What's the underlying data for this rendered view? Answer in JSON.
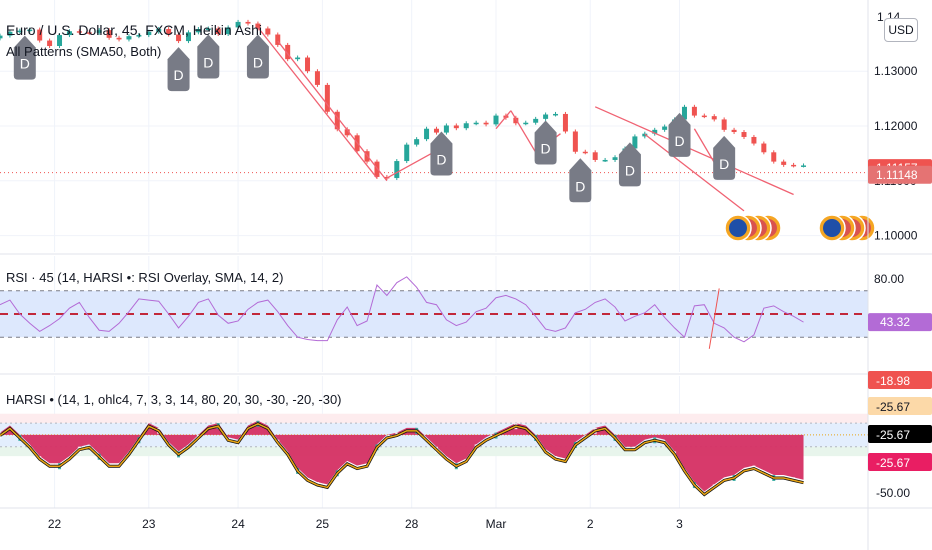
{
  "header": {
    "title": "Euro / U.S. Dollar, 45, FXCM, Heikin Ashi",
    "indicator": "All Patterns (SMA50, Both)",
    "rsi_legend": "RSI · 45 (14, HARSI •: RSI Overlay, SMA, 14, 2)",
    "harsi_legend": "HARSI • (14, 1, ohlc4, 7, 3, 3, 14, 80, 20, 30, -30, -20, -30)",
    "currency_button": "USD",
    "top_partial": "1.14"
  },
  "colors": {
    "up": "#26a69a",
    "down": "#ef5350",
    "trend": "#f06272",
    "rsi_line": "#b36bd6",
    "rsi_band": "#dde8fd",
    "rsi_mid": "#c2283a",
    "harsi_bar": "#d52f63",
    "harsi_edge": "#e8a515",
    "badge": "#787b86",
    "axis": "#131722",
    "grid": "#f0f3fa"
  },
  "chart_data": [
    {
      "type": "line",
      "name": "price",
      "chart_kind": "heikin-ashi candles",
      "ylim": [
        1.097,
        1.143
      ],
      "price_ticks": [
        "1.13000",
        "1.12000",
        "1.11000",
        "1.10000"
      ],
      "current_labels": [
        "1.11157",
        "1.11148"
      ],
      "x_ticks": [
        "22",
        "23",
        "24",
        "25",
        "28",
        "Mar",
        "2",
        "3"
      ],
      "x": [
        0,
        2,
        4,
        6,
        8,
        10,
        12,
        14,
        16,
        18,
        20,
        22,
        24,
        26,
        28,
        30,
        32,
        34,
        36,
        38,
        40,
        42,
        44,
        46,
        48,
        50,
        52,
        54,
        56,
        58,
        60,
        62,
        64,
        66,
        68,
        70,
        72,
        74,
        76,
        78,
        80,
        82,
        84,
        86,
        88,
        90,
        92,
        94,
        96,
        98,
        100,
        102,
        104,
        106,
        108,
        110,
        112,
        114,
        116,
        118,
        120,
        122,
        124,
        126,
        128,
        130,
        132,
        134,
        136,
        138,
        140,
        142,
        144,
        146,
        148,
        150,
        152,
        154,
        156,
        158,
        160,
        162
      ],
      "values": [
        1.1365,
        1.1372,
        1.1374,
        1.1376,
        1.1356,
        1.1346,
        1.1366,
        1.1373,
        1.1371,
        1.137,
        1.1375,
        1.1361,
        1.1358,
        1.1364,
        1.1366,
        1.1372,
        1.1377,
        1.1367,
        1.1355,
        1.1371,
        1.1377,
        1.1378,
        1.1368,
        1.138,
        1.139,
        1.1387,
        1.1378,
        1.1367,
        1.1348,
        1.1322,
        1.1325,
        1.13,
        1.1275,
        1.1226,
        1.1194,
        1.1183,
        1.1154,
        1.1135,
        1.1107,
        1.1105,
        1.1136,
        1.1166,
        1.1176,
        1.1195,
        1.1188,
        1.1201,
        1.1196,
        1.1205,
        1.1206,
        1.1203,
        1.1219,
        1.1215,
        1.1205,
        1.1206,
        1.1213,
        1.1221,
        1.1222,
        1.119,
        1.1153,
        1.1152,
        1.1138,
        1.1138,
        1.1143,
        1.1159,
        1.1181,
        1.1186,
        1.1193,
        1.1199,
        1.1212,
        1.1235,
        1.1219,
        1.1218,
        1.1212,
        1.1193,
        1.1189,
        1.118,
        1.1168,
        1.1152,
        1.1135,
        1.1129,
        1.1128,
        1.1128
      ],
      "pattern_markers": [
        {
          "label": "D",
          "x": 5
        },
        {
          "label": "D",
          "x": 36
        },
        {
          "label": "D",
          "x": 42
        },
        {
          "label": "D",
          "x": 52
        },
        {
          "label": "D",
          "x": 89
        },
        {
          "label": "D",
          "x": 110
        },
        {
          "label": "D",
          "x": 117
        },
        {
          "label": "D",
          "x": 127
        },
        {
          "label": "D",
          "x": 137
        },
        {
          "label": "D",
          "x": 146
        }
      ]
    },
    {
      "type": "line",
      "name": "rsi",
      "ylim": [
        0,
        100
      ],
      "y_ticks": [
        "80.00"
      ],
      "bands": {
        "upper": 70,
        "middle": 50,
        "lower": 30
      },
      "current_label": "43.32",
      "x": [
        0,
        2,
        4,
        6,
        8,
        10,
        12,
        14,
        16,
        18,
        20,
        22,
        24,
        26,
        28,
        30,
        32,
        34,
        36,
        38,
        40,
        42,
        44,
        46,
        48,
        50,
        52,
        54,
        56,
        58,
        60,
        62,
        64,
        66,
        68,
        70,
        72,
        74,
        76,
        78,
        80,
        82,
        84,
        86,
        88,
        90,
        92,
        94,
        96,
        98,
        100,
        102,
        104,
        106,
        108,
        110,
        112,
        114,
        116,
        118,
        120,
        122,
        124,
        126,
        128,
        130,
        132,
        134,
        136,
        138,
        140,
        142,
        144,
        146,
        148,
        150,
        152,
        154,
        156,
        158,
        160,
        162
      ],
      "values": [
        58,
        62,
        50,
        42,
        35,
        40,
        46,
        55,
        60,
        47,
        36,
        35,
        42,
        52,
        63,
        62,
        61,
        50,
        38,
        48,
        60,
        63,
        49,
        42,
        44,
        54,
        60,
        62,
        52,
        40,
        30,
        28,
        27,
        27,
        45,
        56,
        40,
        44,
        75,
        66,
        77,
        82,
        73,
        60,
        58,
        45,
        40,
        43,
        52,
        55,
        64,
        66,
        63,
        58,
        48,
        37,
        35,
        38,
        51,
        54,
        60,
        63,
        56,
        44,
        48,
        51,
        58,
        47,
        38,
        30,
        57,
        58,
        42,
        38,
        30,
        26,
        32,
        55,
        57,
        52,
        48,
        43
      ]
    },
    {
      "type": "area",
      "name": "harsi",
      "ylim": [
        -56,
        0
      ],
      "right_labels": [
        "-18.98",
        "-25.67",
        "-25.67",
        "-25.67",
        "-50.00"
      ],
      "x": [
        0,
        2,
        4,
        6,
        8,
        10,
        12,
        14,
        16,
        18,
        20,
        22,
        24,
        26,
        28,
        30,
        32,
        34,
        36,
        38,
        40,
        42,
        44,
        46,
        48,
        50,
        52,
        54,
        56,
        58,
        60,
        62,
        64,
        66,
        68,
        70,
        72,
        74,
        76,
        78,
        80,
        82,
        84,
        86,
        88,
        90,
        92,
        94,
        96,
        98,
        100,
        102,
        104,
        106,
        108,
        110,
        112,
        114,
        116,
        118,
        120,
        122,
        124,
        126,
        128,
        130,
        132,
        134,
        136,
        138,
        140,
        142,
        144,
        146,
        148,
        150,
        152,
        154,
        156,
        158,
        160,
        162
      ],
      "values": [
        -24,
        -21,
        -25,
        -29,
        -34,
        -37,
        -37,
        -34,
        -30,
        -29,
        -33,
        -37,
        -37,
        -32,
        -26,
        -20,
        -22,
        -28,
        -32,
        -29,
        -25,
        -21,
        -20,
        -26,
        -27,
        -21,
        -19,
        -21,
        -27,
        -32,
        -39,
        -43,
        -45,
        -46,
        -40,
        -36,
        -38,
        -37,
        -29,
        -25,
        -24,
        -22,
        -22,
        -26,
        -30,
        -34,
        -37,
        -35,
        -29,
        -26,
        -24,
        -22,
        -20,
        -21,
        -25,
        -31,
        -34,
        -35,
        -28,
        -25,
        -22,
        -21,
        -25,
        -30,
        -30,
        -27,
        -26,
        -27,
        -32,
        -39,
        -45,
        -49,
        -46,
        -43,
        -42,
        -39,
        -38,
        -40,
        -42,
        -42,
        -43,
        -44
      ]
    }
  ]
}
